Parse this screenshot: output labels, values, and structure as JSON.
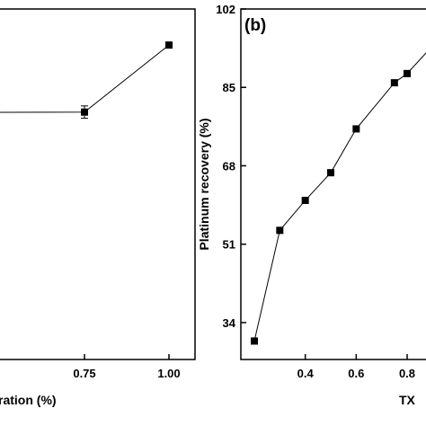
{
  "chart_data": [
    {
      "type": "line",
      "panel_label": "",
      "x_ticks": [
        0.75,
        1.0
      ],
      "x_tick_labels": [
        "0.75",
        "1.00"
      ],
      "xlabel": "ration (%)",
      "ylabel": "",
      "x": [
        0.5,
        0.75,
        1.0
      ],
      "series": [
        {
          "name": "",
          "values": [
            77.0,
            82.0,
            95.0
          ],
          "error": [
            0,
            1.2,
            0
          ]
        }
      ],
      "xlim": [
        0.5,
        1.05
      ],
      "ylim": [
        34,
        102
      ]
    },
    {
      "type": "line",
      "panel_label": "(b)",
      "xlabel": "TX",
      "ylabel": "Platinum recovery (%)",
      "x_ticks": [
        0.4,
        0.6,
        0.8
      ],
      "x_tick_labels": [
        "0.4",
        "0.6",
        "0.8"
      ],
      "y_ticks": [
        34,
        51,
        68,
        85,
        102
      ],
      "y_tick_labels": [
        "34",
        "51",
        "68",
        "85",
        "102"
      ],
      "x": [
        0.2,
        0.3,
        0.4,
        0.5,
        0.6,
        0.75,
        0.8,
        0.9
      ],
      "series": [
        {
          "name": "",
          "values": [
            30.0,
            54.0,
            60.5,
            66.5,
            76.0,
            86.0,
            88.0,
            94.0
          ]
        }
      ],
      "xlim": [
        0.15,
        0.9
      ],
      "ylim": [
        26,
        102
      ]
    }
  ]
}
